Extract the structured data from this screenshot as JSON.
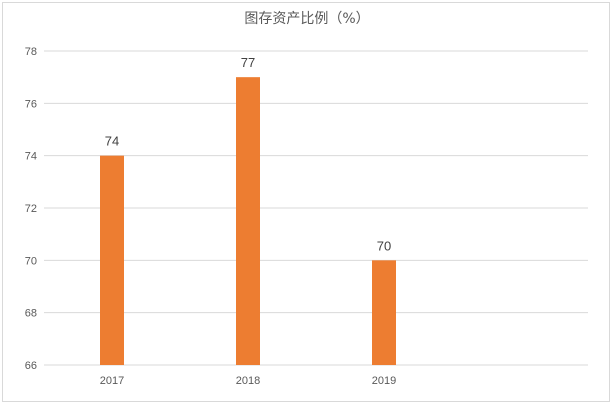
{
  "chart_data": {
    "type": "bar",
    "title": "图存资产比例（%）",
    "categories": [
      "2017",
      "2018",
      "2019"
    ],
    "values": [
      74,
      77,
      70
    ],
    "data_labels": [
      "74",
      "77",
      "70"
    ],
    "ylim": [
      66,
      78
    ],
    "yticks": [
      "66",
      "68",
      "70",
      "72",
      "74",
      "76",
      "78"
    ],
    "ytick_values": [
      66,
      68,
      70,
      72,
      74,
      76,
      78
    ],
    "grid": true,
    "bar_color": "#ed7d31",
    "grid_color": "#d9d9d9"
  }
}
